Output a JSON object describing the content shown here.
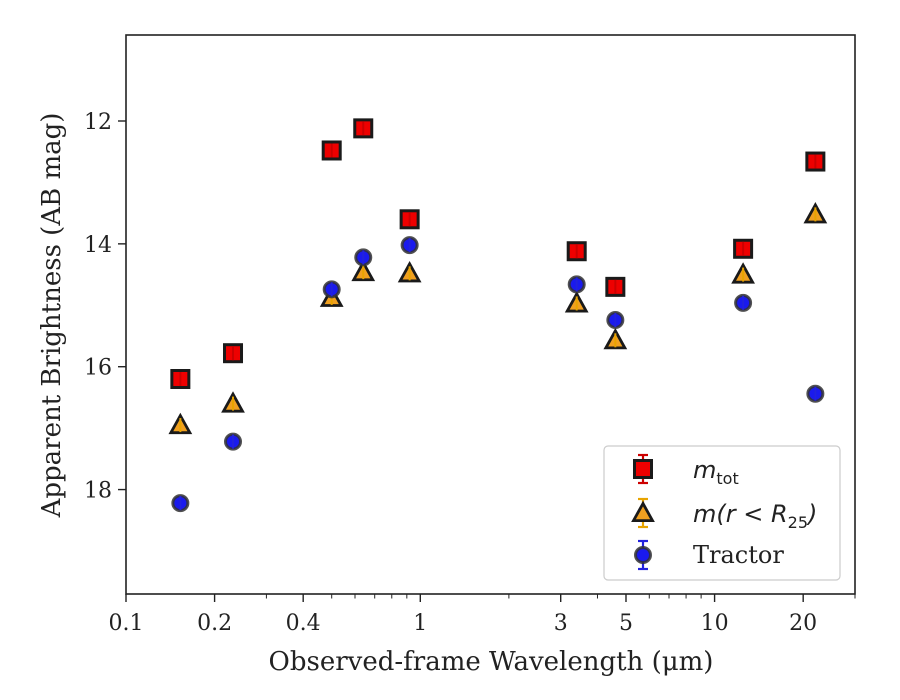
{
  "chart_data": {
    "type": "scatter",
    "xlabel": "Observed-frame Wavelength (μm)",
    "ylabel": "Apparent Brightness (AB mag)",
    "xscale": "log",
    "xlim": [
      0.1,
      30
    ],
    "ylim": [
      19.7,
      10.6
    ],
    "y_inverted": true,
    "xticks": [
      {
        "value": 0.1,
        "label": "0.1"
      },
      {
        "value": 0.2,
        "label": "0.2"
      },
      {
        "value": 0.4,
        "label": "0.4"
      },
      {
        "value": 1,
        "label": "1"
      },
      {
        "value": 3,
        "label": "3"
      },
      {
        "value": 5,
        "label": "5"
      },
      {
        "value": 10,
        "label": "10"
      },
      {
        "value": 20,
        "label": "20"
      }
    ],
    "yticks": [
      {
        "value": 12,
        "label": "12"
      },
      {
        "value": 14,
        "label": "14"
      },
      {
        "value": 16,
        "label": "16"
      },
      {
        "value": 18,
        "label": "18"
      }
    ],
    "grid": false,
    "legend_position": "bottom-right",
    "series": [
      {
        "name": "m_tot",
        "marker": "square",
        "face_color": "#ee0000",
        "error_color": "#cc0000",
        "points": [
          {
            "x": 0.153,
            "y": 16.2
          },
          {
            "x": 0.231,
            "y": 15.78
          },
          {
            "x": 0.5,
            "y": 12.48
          },
          {
            "x": 0.64,
            "y": 12.12
          },
          {
            "x": 0.92,
            "y": 13.6
          },
          {
            "x": 3.4,
            "y": 14.12
          },
          {
            "x": 4.6,
            "y": 14.7
          },
          {
            "x": 12.5,
            "y": 14.08
          },
          {
            "x": 22.0,
            "y": 12.66
          }
        ]
      },
      {
        "name": "m(r < R25)",
        "marker": "triangle",
        "face_color": "#f0a020",
        "error_color": "#e8a400",
        "points": [
          {
            "x": 0.153,
            "y": 16.95
          },
          {
            "x": 0.231,
            "y": 16.6
          },
          {
            "x": 0.5,
            "y": 14.88
          },
          {
            "x": 0.64,
            "y": 14.46
          },
          {
            "x": 0.92,
            "y": 14.48
          },
          {
            "x": 3.4,
            "y": 14.97
          },
          {
            "x": 4.6,
            "y": 15.57
          },
          {
            "x": 12.5,
            "y": 14.5
          },
          {
            "x": 22.0,
            "y": 13.52
          }
        ]
      },
      {
        "name": "Tractor",
        "marker": "circle",
        "face_color": "#1a1aee",
        "error_color": "#2222dd",
        "points": [
          {
            "x": 0.153,
            "y": 18.22
          },
          {
            "x": 0.231,
            "y": 17.22
          },
          {
            "x": 0.5,
            "y": 14.74
          },
          {
            "x": 0.64,
            "y": 14.22
          },
          {
            "x": 0.92,
            "y": 14.02
          },
          {
            "x": 3.4,
            "y": 14.66
          },
          {
            "x": 4.6,
            "y": 15.24
          },
          {
            "x": 12.5,
            "y": 14.96
          },
          {
            "x": 22.0,
            "y": 16.44
          }
        ]
      }
    ],
    "legend": [
      {
        "base": "m",
        "sub": "tot"
      },
      {
        "base": "m(r < R",
        "sub": "25",
        "tail": ")"
      },
      {
        "base": "Tractor"
      }
    ]
  }
}
